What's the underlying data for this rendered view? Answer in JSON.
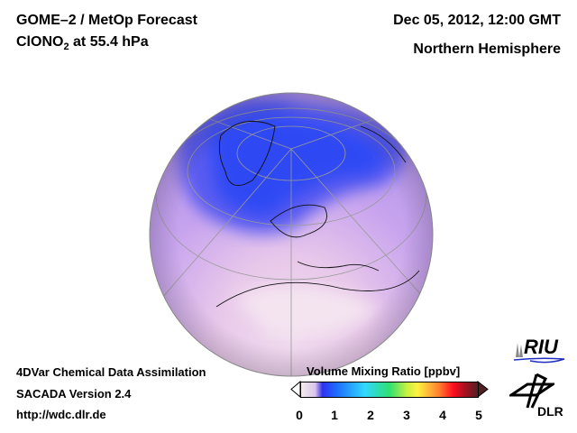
{
  "header": {
    "title_line1": "GOME–2 / MetOp Forecast",
    "title_line2_species": "ClONO",
    "title_line2_sub": "2",
    "title_line2_rest": " at 55.4 hPa",
    "date": "Dec 05, 2012, 12:00 GMT",
    "region": "Northern Hemisphere"
  },
  "footer": {
    "line1": "4DVar Chemical Data Assimilation",
    "line2": "SACADA Version 2.4",
    "line3": "http://wdc.dlr.de"
  },
  "colorbar": {
    "title": "Volume Mixing Ratio [ppbv]",
    "ticks": [
      "0",
      "1",
      "2",
      "3",
      "4",
      "5"
    ],
    "range": [
      0,
      5
    ]
  },
  "logos": {
    "riu": "RIU",
    "dlr": "DLR"
  },
  "colors": {
    "low": "#f4ecef",
    "globe_mid": "#c8a8ec",
    "vortex": "#3050f0"
  }
}
